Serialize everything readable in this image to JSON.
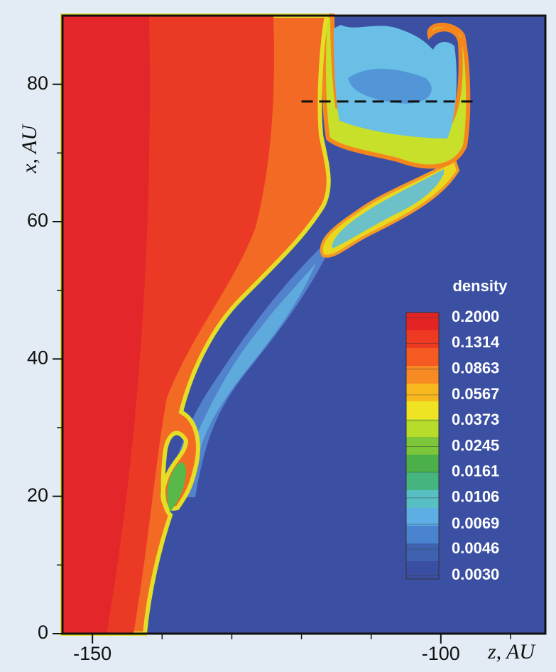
{
  "chart_data": {
    "type": "contour",
    "x_label": "z, AU",
    "y_label": "x, AU",
    "xlim": [
      -154.3,
      -85
    ],
    "ylim": [
      0,
      90
    ],
    "xticks": [
      -150,
      -100
    ],
    "xticks_minor": [
      -140,
      -130,
      -120,
      -110,
      -90
    ],
    "yticks": [
      0,
      20,
      40,
      60,
      80
    ],
    "yticks_minor": [
      10,
      30,
      50,
      70
    ],
    "annotation_line": {
      "y": 77.5,
      "x": [
        -120,
        -95
      ]
    },
    "colorbar": {
      "title": "density",
      "log": true,
      "ticks": [
        {
          "value": 0.2,
          "label": "0.2000"
        },
        {
          "value": 0.1314,
          "label": "0.1314"
        },
        {
          "value": 0.0863,
          "label": "0.0863"
        },
        {
          "value": 0.0567,
          "label": "0.0567"
        },
        {
          "value": 0.0373,
          "label": "0.0373"
        },
        {
          "value": 0.0245,
          "label": "0.0245"
        },
        {
          "value": 0.0161,
          "label": "0.0161"
        },
        {
          "value": 0.0106,
          "label": "0.0106"
        },
        {
          "value": 0.0069,
          "label": "0.0069"
        },
        {
          "value": 0.0046,
          "label": "0.0046"
        },
        {
          "value": 0.003,
          "label": "0.0030"
        }
      ],
      "colors": [
        "#e42424",
        "#ee3a22",
        "#f45a22",
        "#f78a22",
        "#f7b81e",
        "#eee424",
        "#b8dc2c",
        "#7cc63a",
        "#4cb04a",
        "#46b47e",
        "#58c0c4",
        "#5eaee6",
        "#4a84d0",
        "#3e62b0",
        "#3b4fa2"
      ]
    }
  }
}
